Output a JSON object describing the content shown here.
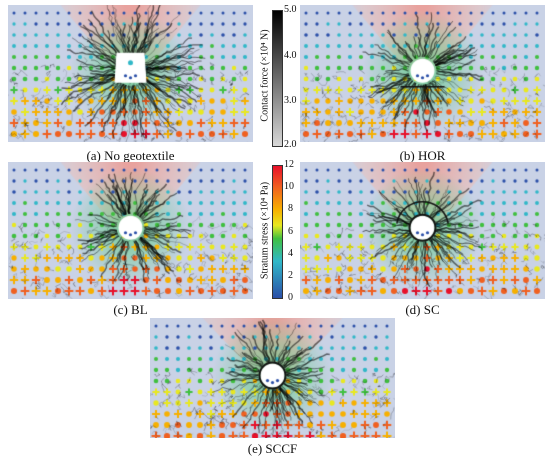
{
  "panels": [
    {
      "caption": "(a) No geotextile",
      "variant": "none"
    },
    {
      "caption": "(b) HOR",
      "variant": "hor"
    },
    {
      "caption": "(c) BL",
      "variant": "bl"
    },
    {
      "caption": "(d) SC",
      "variant": "sc"
    },
    {
      "caption": "(e) SCCF",
      "variant": "sccf"
    }
  ],
  "contact_force_bar": {
    "label": "Contact force (×10⁴ N)",
    "ticks": [
      "5.0",
      "4.0",
      "3.0",
      "2.0"
    ],
    "colors": [
      "#000000",
      "#d8d8d8"
    ]
  },
  "stratum_stress_bar": {
    "label": "Stratum stress (×10⁴ Pa)",
    "ticks": [
      "12",
      "10",
      "8",
      "6",
      "4",
      "2",
      "0"
    ],
    "colors": [
      "#e8102a",
      "#f06020",
      "#f7b000",
      "#e8e820",
      "#40c040",
      "#30b8c8",
      "#2a4fa8"
    ]
  }
}
